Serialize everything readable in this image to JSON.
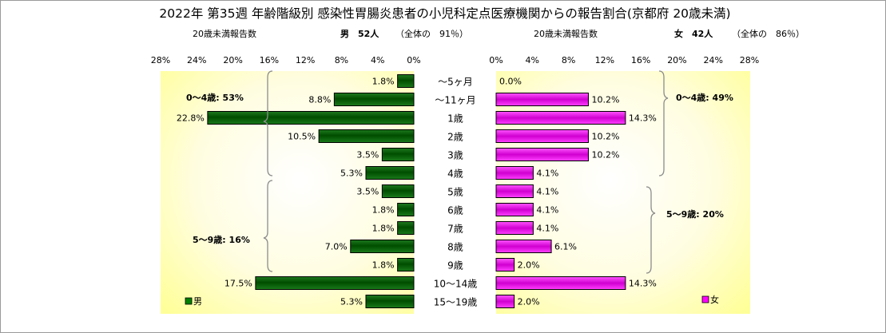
{
  "title": "2022年 第35週 年齢階級別 感染性胃腸炎患者の小児科定点医療機関からの報告割合(京都府 20歳未満)",
  "chart_data": {
    "type": "bar",
    "orientation": "horizontal-butterfly",
    "categories": [
      "～5ヶ月",
      "～11ヶ月",
      "1歳",
      "2歳",
      "3歳",
      "4歳",
      "5歳",
      "6歳",
      "7歳",
      "8歳",
      "9歳",
      "10～14歳",
      "15～19歳"
    ],
    "xlim": [
      0,
      28
    ],
    "ticks": [
      "28%",
      "24%",
      "20%",
      "16%",
      "12%",
      "8%",
      "4%",
      "0%"
    ],
    "ticks_right": [
      "0%",
      "4%",
      "8%",
      "12%",
      "16%",
      "20%",
      "24%",
      "28%"
    ],
    "series": [
      {
        "name": "男",
        "side": "left",
        "color": "#008000",
        "header_label": "20歳未満報告数",
        "header_total": "男　52人",
        "header_ratio": "（全体の　91％）",
        "values": [
          1.8,
          8.8,
          22.8,
          10.5,
          3.5,
          5.3,
          3.5,
          1.8,
          1.8,
          7.0,
          1.8,
          17.5,
          5.3
        ],
        "labels": [
          "1.8%",
          "8.8%",
          "22.8%",
          "10.5%",
          "3.5%",
          "5.3%",
          "3.5%",
          "1.8%",
          "1.8%",
          "7.0%",
          "1.8%",
          "17.5%",
          "5.3%"
        ],
        "group_labels": [
          "0～4歳: 53%",
          "5～9歳: 16%"
        ],
        "legend": "男"
      },
      {
        "name": "女",
        "side": "right",
        "color": "#ff00ff",
        "header_label": "20歳未満報告数",
        "header_total": "女　42人",
        "header_ratio": "（全体の　86％）",
        "values": [
          0.0,
          10.2,
          14.3,
          10.2,
          10.2,
          4.1,
          4.1,
          4.1,
          4.1,
          6.1,
          2.0,
          14.3,
          2.0
        ],
        "labels": [
          "0.0%",
          "10.2%",
          "14.3%",
          "10.2%",
          "10.2%",
          "4.1%",
          "4.1%",
          "4.1%",
          "4.1%",
          "6.1%",
          "2.0%",
          "14.3%",
          "2.0%"
        ],
        "group_labels": [
          "0～4歳: 49%",
          "5～9歳: 20%"
        ],
        "legend": "女"
      }
    ],
    "background": "yellow radial gradient in plot areas",
    "grid": false,
    "legend_placement": "bottom-left (男), bottom-right (女)"
  }
}
